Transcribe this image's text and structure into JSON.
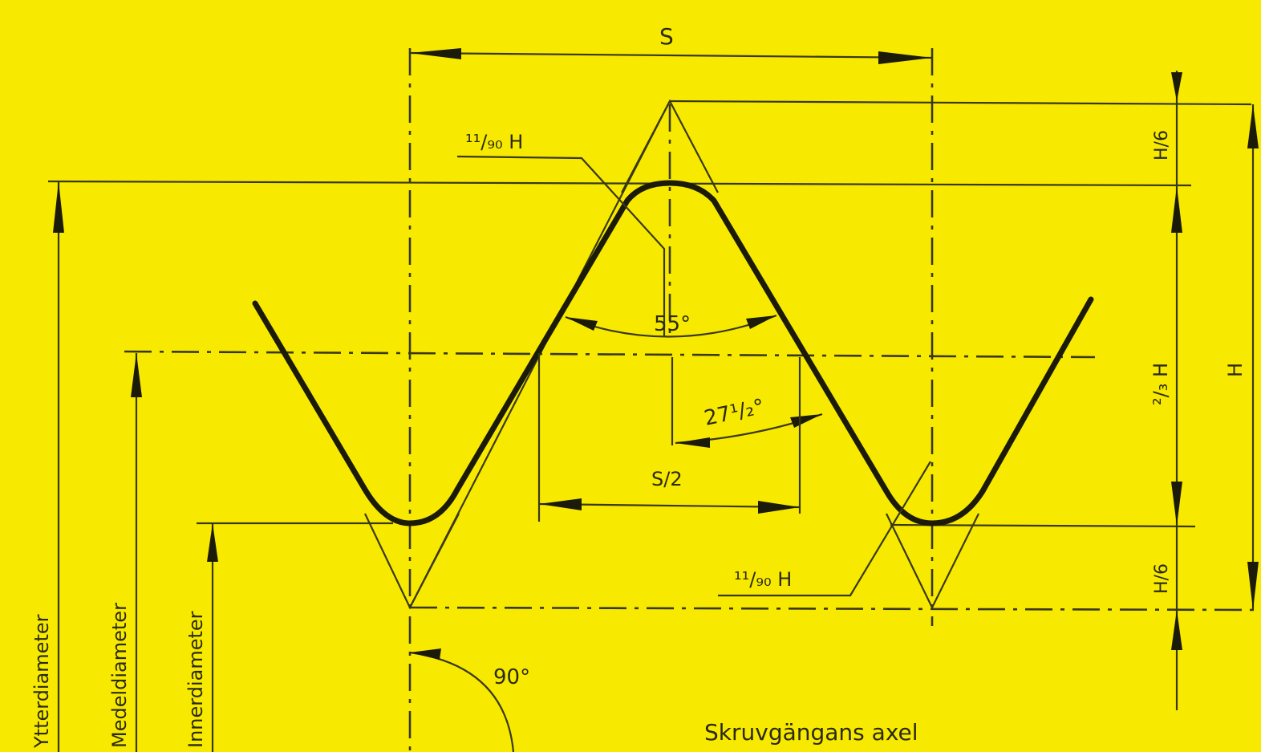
{
  "figure": {
    "background": "#f7ea00",
    "ink": "#1c1b0a",
    "labels": {
      "pitch": "S",
      "crest_radius": "¹¹/₉₀ H",
      "root_radius": "¹¹/₉₀ H",
      "thread_angle": "55°",
      "half_angle": "27¹/₂°",
      "half_pitch": "S/2",
      "top_truncation": "H/6",
      "working_depth": "²/₃ H",
      "bottom_truncation": "H/6",
      "height": "H",
      "right_angle": "90°",
      "outer_diameter": "Ytterdiameter",
      "pitch_diameter": "Medeldiameter",
      "inner_diameter": "Innerdiameter",
      "axis": "Skruvgängans axel"
    }
  }
}
